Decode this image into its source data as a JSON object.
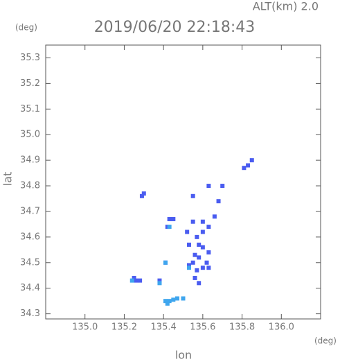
{
  "chart_data": {
    "type": "scatter",
    "title": "2019/06/20 22:18:43",
    "subtitle": "ALT(km) 2.0",
    "y_unit": "(deg)",
    "x_unit": "(deg)",
    "x_label": "lon",
    "y_label": "lat",
    "xlim": [
      134.8,
      136.2
    ],
    "ylim": [
      34.28,
      35.35
    ],
    "xticks": [
      {
        "value": 135.0,
        "label": "135.0"
      },
      135.2,
      135.4,
      135.6,
      135.8,
      {
        "value": 136.0,
        "label": "136.0"
      }
    ],
    "yticks": [
      35.3,
      35.2,
      35.1,
      {
        "value": 35.0,
        "label": "35.0"
      },
      34.9,
      34.8,
      34.7,
      34.6,
      34.5,
      34.4,
      34.3
    ],
    "series": [
      {
        "color": "#4a5cf0",
        "x": [
          135.83,
          135.81,
          135.85,
          135.29,
          135.3,
          135.55,
          135.63,
          135.7,
          135.68,
          135.66,
          135.6,
          135.55,
          135.43,
          135.42,
          135.6,
          135.57,
          135.63,
          135.53,
          135.58,
          135.6,
          135.56,
          135.58,
          135.55,
          135.53,
          135.62,
          135.63,
          135.57,
          135.6,
          135.56,
          135.58,
          135.41,
          135.26,
          135.28,
          135.25,
          135.38,
          135.63,
          135.52,
          135.45
        ],
        "y": [
          34.88,
          34.87,
          34.9,
          34.76,
          34.77,
          34.76,
          34.8,
          34.8,
          34.74,
          34.68,
          34.66,
          34.66,
          34.67,
          34.64,
          34.62,
          34.6,
          34.64,
          34.57,
          34.57,
          34.56,
          34.53,
          34.52,
          34.5,
          34.49,
          34.5,
          34.48,
          34.47,
          34.48,
          34.44,
          34.42,
          34.5,
          34.43,
          34.43,
          34.44,
          34.43,
          34.54,
          34.62,
          34.67
        ]
      },
      {
        "color": "#3fa6ee",
        "x": [
          135.41,
          135.43,
          135.45,
          135.47,
          135.5,
          135.42,
          135.24,
          135.41,
          135.53,
          135.38,
          135.43
        ],
        "y": [
          34.35,
          34.35,
          34.355,
          34.36,
          34.36,
          34.34,
          34.43,
          34.5,
          34.48,
          34.42,
          34.64
        ]
      }
    ]
  }
}
